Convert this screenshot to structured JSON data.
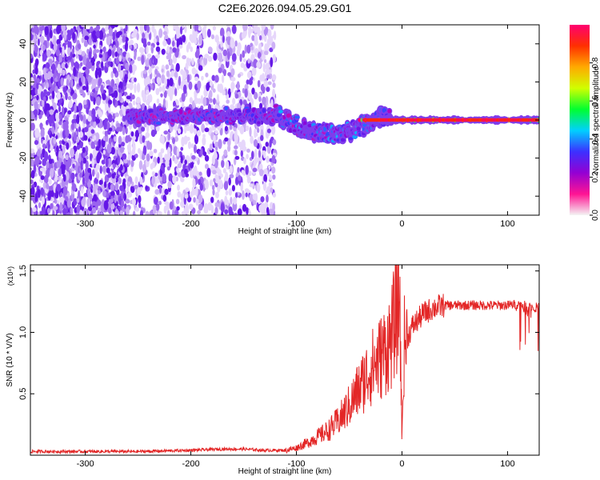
{
  "title": "C2E6.2026.094.05.29.G01",
  "colors": {
    "snr_line": "#e32626",
    "frame": "#000000",
    "scatter_base": "#7a2ff0"
  },
  "chart_data": [
    {
      "type": "heatmap",
      "name": "spectrogram",
      "xlabel": "Height of straight line (km)",
      "ylabel": "Frequency (Hz)",
      "xlim": [
        -352,
        130
      ],
      "ylim": [
        -50,
        50
      ],
      "xticks": [
        -300,
        -200,
        -100,
        0,
        100
      ],
      "xtick_labels": [
        "-300",
        "-200",
        "-100",
        "0",
        "100"
      ],
      "yticks": [
        -40,
        -20,
        0,
        20,
        40
      ],
      "ytick_labels": [
        "-40",
        "-20",
        "0",
        "20",
        "40"
      ],
      "colorbar": {
        "label": "Normalized spectral amplitude",
        "range": [
          0,
          1
        ],
        "ticks": [
          0.0,
          0.2,
          0.4,
          0.6,
          0.8
        ],
        "tick_labels": [
          "0.0",
          "0.2",
          "0.4",
          "0.6",
          "0.8"
        ],
        "stops": [
          "#f4f4f4",
          "#ff1493",
          "#9400d3",
          "#3c30ff",
          "#00d0ff",
          "#00ff30",
          "#d0ff00",
          "#ffaa00",
          "#ff3000",
          "#ff0070"
        ]
      },
      "regions": [
        {
          "x": [
            -352,
            -260
          ],
          "band": [
            -50,
            50
          ],
          "density": "high",
          "amplitude": 0.1
        },
        {
          "x": [
            -260,
            -120
          ],
          "band": [
            -50,
            50
          ],
          "density": "medium",
          "amplitude": 0.05
        },
        {
          "x": [
            -260,
            -120
          ],
          "band": [
            -4,
            8
          ],
          "density": "line",
          "amplitude": 0.25
        },
        {
          "x": [
            -120,
            -10
          ],
          "band": [
            -14,
            6
          ],
          "density": "line",
          "amplitude": 0.3
        },
        {
          "x": [
            -40,
            130
          ],
          "band": [
            -1,
            1
          ],
          "density": "line",
          "amplitude": 0.9
        }
      ]
    },
    {
      "type": "line",
      "name": "snr",
      "xlabel": "Height of straight line (km)",
      "ylabel": "SNR (10 * V/V)",
      "y_multiplier_label": "(x10⁴)",
      "xlim": [
        -352,
        130
      ],
      "ylim": [
        0,
        1.55
      ],
      "xticks": [
        -300,
        -200,
        -100,
        0,
        100
      ],
      "xtick_labels": [
        "-300",
        "-200",
        "-100",
        "0",
        "100"
      ],
      "yticks": [
        0.5,
        1.0,
        1.5
      ],
      "ytick_labels": [
        "0.5",
        "1.0",
        "1.5"
      ],
      "series": [
        {
          "name": "SNR",
          "x": [
            -352,
            -300,
            -250,
            -200,
            -170,
            -150,
            -130,
            -110,
            -100,
            -90,
            -80,
            -70,
            -60,
            -50,
            -40,
            -30,
            -20,
            -10,
            -2,
            0,
            2,
            10,
            20,
            30,
            40,
            60,
            80,
            100,
            110,
            120,
            130
          ],
          "y": [
            0.03,
            0.03,
            0.03,
            0.04,
            0.05,
            0.05,
            0.04,
            0.04,
            0.06,
            0.1,
            0.15,
            0.2,
            0.28,
            0.4,
            0.55,
            0.7,
            0.8,
            0.95,
            1.3,
            0.1,
            0.9,
            1.05,
            1.15,
            1.2,
            1.22,
            1.22,
            1.22,
            1.22,
            1.23,
            1.21,
            1.2
          ]
        }
      ]
    }
  ]
}
